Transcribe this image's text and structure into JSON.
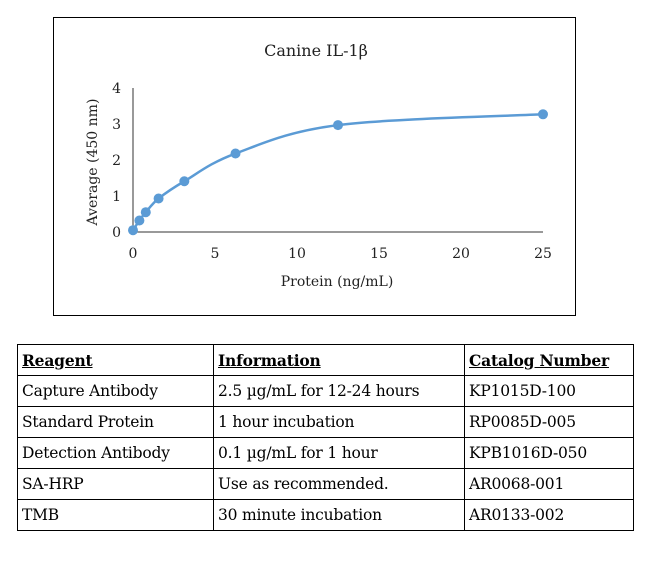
{
  "chart_data": {
    "type": "scatter",
    "title": "Canine IL-1β",
    "xlabel": "Protein (ng/mL)",
    "ylabel": "Average (450 nm)",
    "xlim": [
      0,
      25
    ],
    "ylim": [
      0,
      4
    ],
    "xticks": [
      0,
      5,
      10,
      15,
      20,
      25
    ],
    "yticks": [
      0,
      1,
      2,
      3,
      4
    ],
    "grid": false,
    "legend": "none",
    "series": [
      {
        "x": [
          0,
          0.39,
          0.78,
          1.56,
          3.13,
          6.25,
          12.5,
          25
        ],
        "y": [
          0.05,
          0.32,
          0.55,
          0.93,
          1.41,
          2.18,
          2.97,
          3.27
        ],
        "color": "#5b9bd5",
        "line": "smooth"
      }
    ]
  },
  "table": {
    "headers": [
      "Reagent",
      "Information",
      "Catalog Number"
    ],
    "rows": [
      [
        "Capture Antibody",
        "2.5 µg/mL for 12-24 hours",
        "KP1015D-100"
      ],
      [
        "Standard Protein",
        "1 hour incubation",
        "RP0085D-005"
      ],
      [
        "Detection Antibody",
        "0.1 µg/mL for 1 hour",
        "KPB1016D-050"
      ],
      [
        "SA-HRP",
        "Use as recommended.",
        "AR0068-001"
      ],
      [
        "TMB",
        "30 minute incubation",
        "AR0133-002"
      ]
    ]
  }
}
